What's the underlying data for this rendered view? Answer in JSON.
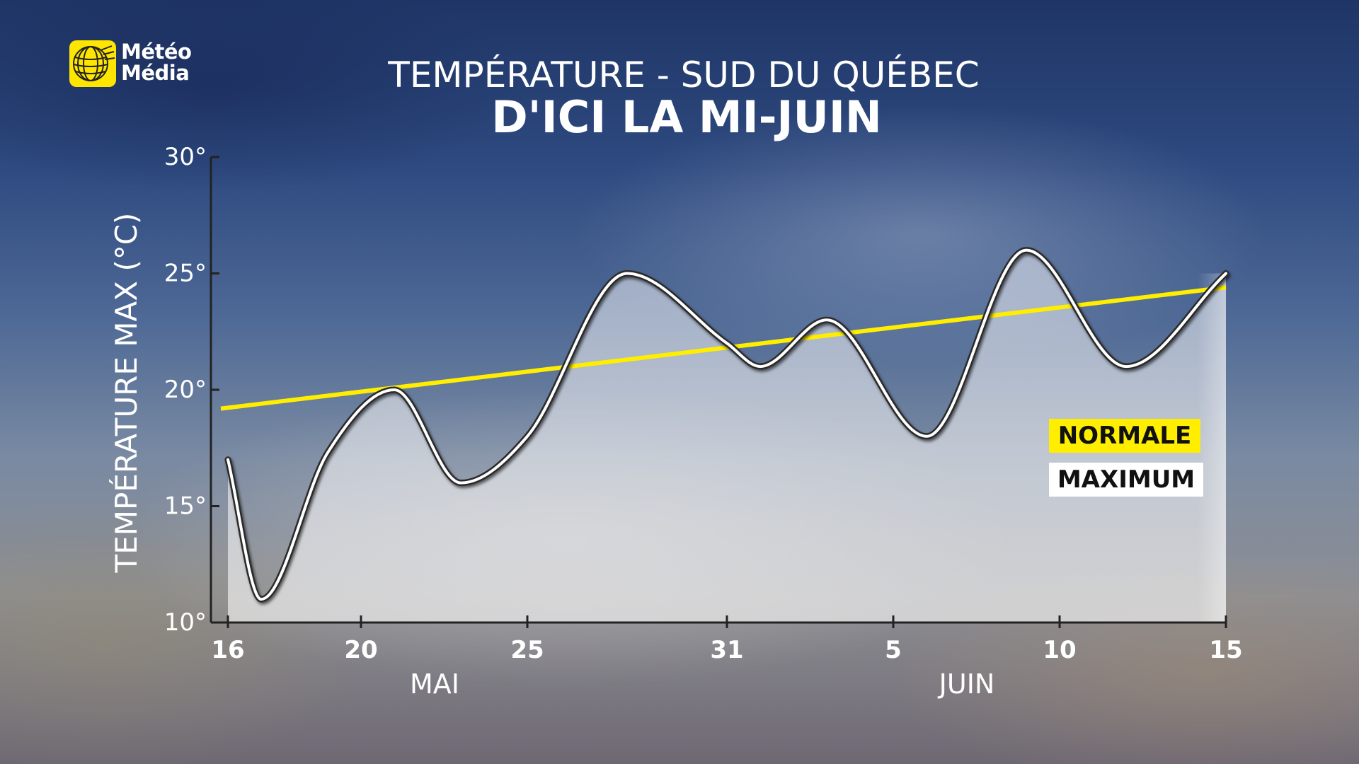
{
  "brand": {
    "line1": "Météo",
    "line2": "Média",
    "logo_icon": "globe-icon",
    "logo_color": "#ffe600"
  },
  "title": "TEMPÉRATURE - SUD DU QUÉBEC",
  "subtitle": "D'ICI LA MI-JUIN",
  "legend": {
    "normale": "NORMALE",
    "maximum": "MAXIMUM",
    "normale_color": "#ffee00",
    "maximum_color": "#ffffff"
  },
  "chart_data": {
    "type": "line",
    "ylabel": "TEMPÉRATURE MAX (°C)",
    "ylim": [
      10,
      30
    ],
    "yticks": [
      10,
      15,
      20,
      25,
      30
    ],
    "ytick_labels": [
      "10°",
      "15°",
      "20°",
      "25°",
      "30°"
    ],
    "x_ticks": [
      {
        "date": "2024-05-16",
        "label": "16"
      },
      {
        "date": "2024-05-20",
        "label": "20"
      },
      {
        "date": "2024-05-25",
        "label": "25"
      },
      {
        "date": "2024-05-31",
        "label": "31"
      },
      {
        "date": "2024-06-05",
        "label": "5"
      },
      {
        "date": "2024-06-10",
        "label": "10"
      },
      {
        "date": "2024-06-15",
        "label": "15"
      }
    ],
    "month_labels": [
      {
        "label": "MAI",
        "date": "2024-05-22"
      },
      {
        "label": "JUIN",
        "date": "2024-06-07"
      }
    ],
    "xlim": [
      "2024-05-16",
      "2024-06-15"
    ],
    "grid": false,
    "series": [
      {
        "name": "MAXIMUM",
        "color": "#ffffff",
        "smooth": true,
        "points": [
          {
            "x": "2024-05-16",
            "y": 17
          },
          {
            "x": "2024-05-17",
            "y": 11
          },
          {
            "x": "2024-05-19",
            "y": 17.3
          },
          {
            "x": "2024-05-21",
            "y": 20
          },
          {
            "x": "2024-05-23",
            "y": 16
          },
          {
            "x": "2024-05-25",
            "y": 18
          },
          {
            "x": "2024-05-28",
            "y": 25
          },
          {
            "x": "2024-05-31",
            "y": 22
          },
          {
            "x": "2024-06-01",
            "y": 21
          },
          {
            "x": "2024-06-03",
            "y": 23
          },
          {
            "x": "2024-06-06",
            "y": 18
          },
          {
            "x": "2024-06-09",
            "y": 26
          },
          {
            "x": "2024-06-12",
            "y": 21
          },
          {
            "x": "2024-06-15",
            "y": 25
          }
        ]
      },
      {
        "name": "NORMALE",
        "color": "#ffee00",
        "smooth": false,
        "points": [
          {
            "x": "2024-05-16",
            "y": 19.2
          },
          {
            "x": "2024-06-15",
            "y": 24.4
          }
        ]
      }
    ]
  }
}
